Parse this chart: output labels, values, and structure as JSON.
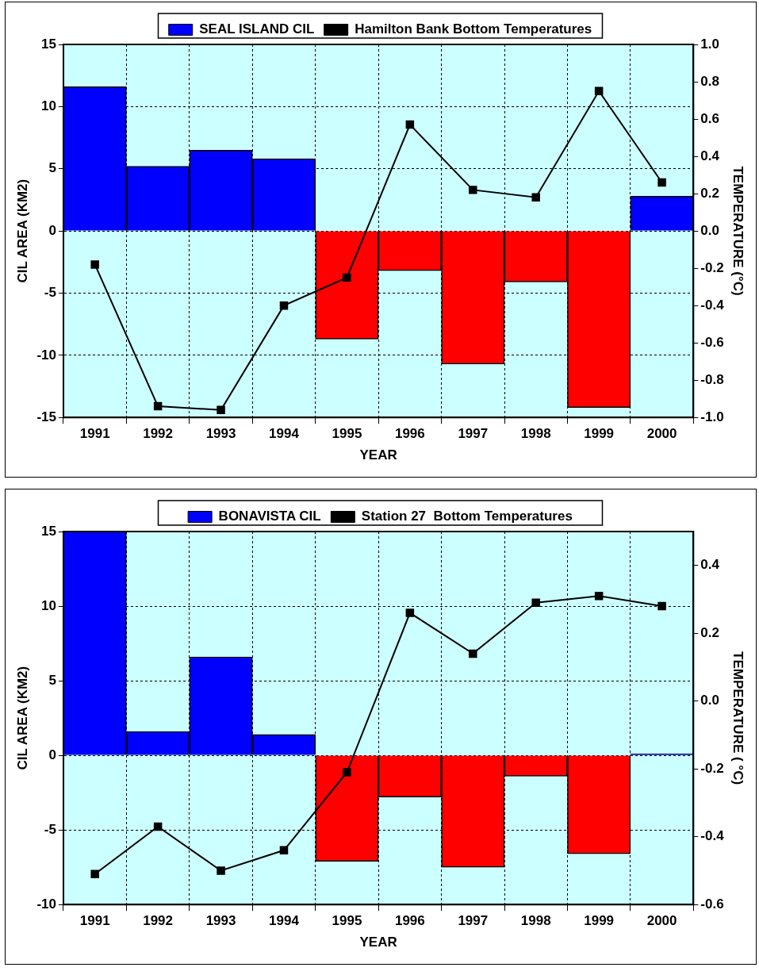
{
  "chart_data": [
    {
      "type": "bar",
      "categories": [
        "1991",
        "1992",
        "1993",
        "1994",
        "1995",
        "1996",
        "1997",
        "1998",
        "1999",
        "2000"
      ],
      "xlabel": "YEAR",
      "ylabel": "CIL AREA (KM2)",
      "y2label": "TEMPERATURE (°C)",
      "ylim": [
        -15,
        15
      ],
      "yticks": [
        -15,
        -10,
        -5,
        0,
        5,
        10,
        15
      ],
      "y2lim": [
        -1,
        1
      ],
      "y2ticks": [
        {
          "value": -1,
          "label": "-1.0"
        },
        {
          "value": -0.8,
          "label": "-0.8"
        },
        {
          "value": -0.6,
          "label": "-0.6"
        },
        {
          "value": -0.4,
          "label": "-0.4"
        },
        {
          "value": -0.2,
          "label": "-0.2"
        },
        {
          "value": 0,
          "label": "0.0"
        },
        {
          "value": 0.2,
          "label": "0.2"
        },
        {
          "value": 0.4,
          "label": "0.4"
        },
        {
          "value": 0.6,
          "label": "0.6"
        },
        {
          "value": 0.8,
          "label": "0.8"
        },
        {
          "value": 1,
          "label": "1.0"
        }
      ],
      "grid": true,
      "legend": "top",
      "marker": "square",
      "series": [
        {
          "name": "SEAL ISLAND CIL",
          "color": "#0000ff",
          "colors": [
            "#0000ff",
            "#0000ff",
            "#0000ff",
            "#0000ff",
            "#ff0000",
            "#ff0000",
            "#ff0000",
            "#ff0000",
            "#ff0000",
            "#0000ff"
          ],
          "values": [
            11.6,
            5.2,
            6.5,
            5.8,
            -8.7,
            -3.2,
            -10.7,
            -4.1,
            -14.2,
            2.8
          ]
        },
        {
          "name": "Hamilton Bank Bottom Temperatures",
          "type": "line",
          "axis": "y2",
          "color": "#000000",
          "values": [
            -0.18,
            -0.94,
            -0.96,
            -0.4,
            -0.25,
            0.57,
            0.22,
            0.18,
            0.75,
            0.26
          ]
        }
      ]
    },
    {
      "type": "bar",
      "categories": [
        "1991",
        "1992",
        "1993",
        "1994",
        "1995",
        "1996",
        "1997",
        "1998",
        "1999",
        "2000"
      ],
      "xlabel": "YEAR",
      "ylabel": "CIL AREA (KM2)",
      "y2label": "TEMPERATURE ( °C)",
      "ylim": [
        -10,
        15
      ],
      "yticks": [
        -10,
        -5,
        0,
        5,
        10,
        15
      ],
      "y2lim": [
        -0.6,
        0.5
      ],
      "y2ticks": [
        {
          "value": -0.6,
          "label": "-0.6"
        },
        {
          "value": -0.4,
          "label": "-0.4"
        },
        {
          "value": -0.2,
          "label": "-0.2"
        },
        {
          "value": 0,
          "label": "0.0"
        },
        {
          "value": 0.2,
          "label": "0.2"
        },
        {
          "value": 0.4,
          "label": "0.4"
        }
      ],
      "grid": true,
      "legend": "top",
      "marker": "square",
      "series": [
        {
          "name": "BONAVISTA CIL",
          "color": "#0000ff",
          "colors": [
            "#0000ff",
            "#0000ff",
            "#0000ff",
            "#0000ff",
            "#ff0000",
            "#ff0000",
            "#ff0000",
            "#ff0000",
            "#ff0000",
            "#0000ff"
          ],
          "values": [
            15,
            1.6,
            6.6,
            1.4,
            -7.1,
            -2.8,
            -7.5,
            -1.4,
            -6.6,
            0.1
          ]
        },
        {
          "name": "Station 27  Bottom Temperatures",
          "type": "line",
          "axis": "y2",
          "color": "#000000",
          "values": [
            -0.51,
            -0.37,
            -0.5,
            -0.44,
            -0.21,
            0.26,
            0.14,
            0.29,
            0.31,
            0.28
          ]
        }
      ]
    }
  ]
}
